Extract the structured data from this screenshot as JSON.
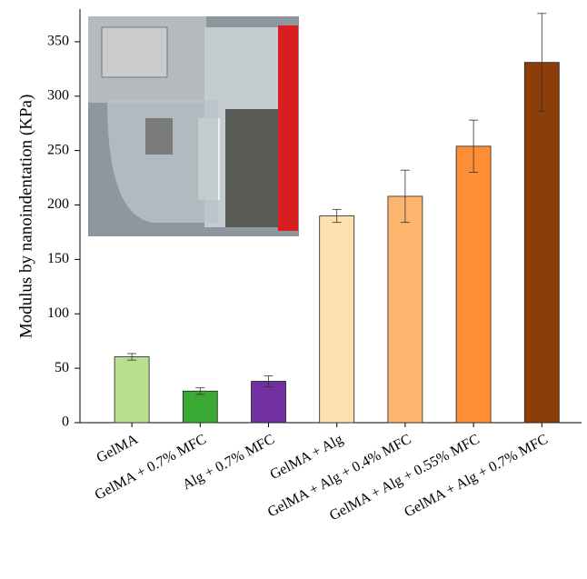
{
  "chart_data": {
    "type": "bar",
    "y_label": "Modulus by nanoindentation (KPa)",
    "categories": [
      "GelMA",
      "GelMA + 0.7% MFC",
      "Alg + 0.7% MFC",
      "GelMA + Alg",
      "GelMA + Alg + 0.4% MFC",
      "GelMA + Alg + 0.55% MFC",
      "GelMA + Alg + 0.7% MFC"
    ],
    "values": [
      60.5,
      29,
      38,
      190,
      208,
      254,
      331
    ],
    "errors": [
      3,
      3,
      5,
      6,
      24,
      24,
      45
    ],
    "colors": [
      "#b8df8f",
      "#3aaa35",
      "#7030a0",
      "#fde0ad",
      "#fdb56e",
      "#fd8e35",
      "#8b3e07"
    ],
    "ylim": [
      0,
      380
    ],
    "yticks": [
      0,
      50,
      100,
      150,
      200,
      250,
      300,
      350
    ]
  }
}
